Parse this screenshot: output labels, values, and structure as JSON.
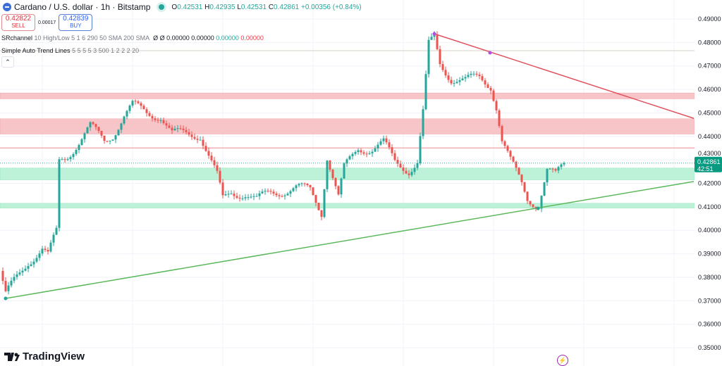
{
  "header": {
    "symbol": "Cardano / U.S. dollar · 1h · Bitstamp",
    "open_label": "O",
    "open": "0.42531",
    "high_label": "H",
    "high": "0.42935",
    "low_label": "L",
    "low": "0.42531",
    "close_label": "C",
    "close": "0.42861",
    "change": "+0.00356 (+0.84%)"
  },
  "trade": {
    "sell_price": "0.42822",
    "sell_label": "SELL",
    "spread": "0.00017",
    "buy_price": "0.42839",
    "buy_label": "BUY"
  },
  "indicators": [
    {
      "name": "SRchannel",
      "params": "10 High/Low 5 1 6 290 50 SMA 200 SMA",
      "values": "Ø Ø 0.00000 0.00000",
      "green": "0.00000",
      "red": "0.00000"
    },
    {
      "name": "Simple Auto Trend Lines",
      "params": "5 5 5 5 3 500 1 2 2 2 20"
    }
  ],
  "collapse_icon": "chevron-up-icon",
  "branding": "TradingView",
  "colors": {
    "up": "#26a69a",
    "down": "#ef5350",
    "resistance_zone": "#f7c5c8",
    "support_zone": "#bdf2d9",
    "down_trend": "#e0535e",
    "up_trend": "#5cb85c"
  },
  "chart_data": {
    "type": "candlestick",
    "ylim": [
      0.345,
      0.495
    ],
    "y_ticks": [
      "0.35000",
      "0.36000",
      "0.37000",
      "0.38000",
      "0.39000",
      "0.40000",
      "0.41000",
      "0.42000",
      "0.43000",
      "0.44000",
      "0.45000",
      "0.46000",
      "0.47000",
      "0.48000",
      "0.49000"
    ],
    "close_path": [
      [
        0,
        0.3827
      ],
      [
        2,
        0.3722
      ],
      [
        5,
        0.378
      ],
      [
        10,
        0.387
      ],
      [
        15,
        0.392
      ],
      [
        17,
        0.389
      ],
      [
        20,
        0.399
      ],
      [
        21,
        0.429
      ],
      [
        24,
        0.432
      ],
      [
        28,
        0.438
      ],
      [
        32,
        0.444
      ],
      [
        37,
        0.438
      ],
      [
        40,
        0.441
      ],
      [
        44,
        0.449
      ],
      [
        47,
        0.453
      ],
      [
        52,
        0.45
      ],
      [
        57,
        0.449
      ],
      [
        61,
        0.441
      ],
      [
        67,
        0.441
      ],
      [
        71,
        0.441
      ],
      [
        74,
        0.432
      ],
      [
        77,
        0.423
      ],
      [
        79,
        0.4127
      ],
      [
        82,
        0.416
      ],
      [
        87,
        0.416
      ],
      [
        91,
        0.4127
      ],
      [
        96,
        0.416
      ],
      [
        100,
        0.417
      ],
      [
        105,
        0.418
      ],
      [
        110,
        0.417
      ],
      [
        114,
        0.408
      ],
      [
        116,
        0.432
      ],
      [
        120,
        0.414
      ],
      [
        122,
        0.426
      ],
      [
        127,
        0.435
      ],
      [
        132,
        0.435
      ],
      [
        136,
        0.437
      ],
      [
        140,
        0.429
      ],
      [
        145,
        0.426
      ],
      [
        148,
        0.429
      ],
      [
        150,
        0.45
      ],
      [
        152,
        0.4786
      ],
      [
        154,
        0.4816
      ],
      [
        156,
        0.471
      ],
      [
        160,
        0.465
      ],
      [
        165,
        0.4636
      ],
      [
        170,
        0.465
      ],
      [
        174,
        0.462
      ],
      [
        176,
        0.453
      ],
      [
        178,
        0.438
      ],
      [
        181,
        0.429
      ],
      [
        185,
        0.42
      ],
      [
        187,
        0.414
      ],
      [
        191,
        0.411
      ],
      [
        194,
        0.425
      ],
      [
        197,
        0.423
      ],
      [
        200,
        0.42861
      ]
    ],
    "zones": [
      {
        "kind": "resistance",
        "from": 0.456,
        "to": 0.4585
      },
      {
        "kind": "resistance",
        "from": 0.441,
        "to": 0.4475
      },
      {
        "kind": "resistance-line",
        "from": 0.435,
        "to": 0.4352
      },
      {
        "kind": "support",
        "from": 0.4215,
        "to": 0.4265
      },
      {
        "kind": "support",
        "from": 0.4095,
        "to": 0.4115
      }
    ],
    "level_line": 0.4765,
    "trend_lines": [
      {
        "kind": "down",
        "from": [
          154,
          0.4837
        ],
        "to": [
          246,
          0.4477
        ]
      },
      {
        "kind": "up",
        "from": [
          2,
          0.371
        ],
        "to": [
          246,
          0.4208
        ]
      }
    ],
    "last_price": "0.42861",
    "countdown": "42:51"
  }
}
